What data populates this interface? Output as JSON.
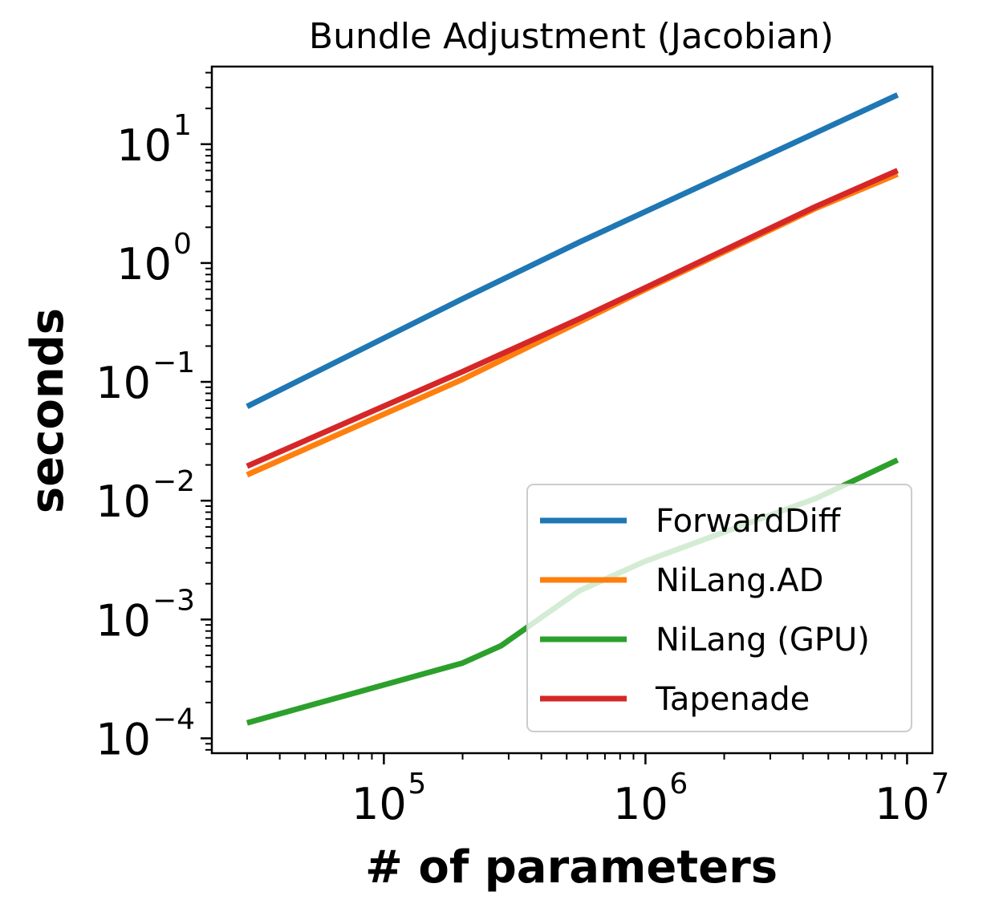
{
  "chart_data": {
    "type": "line",
    "title": "Bundle Adjustment (Jacobian)",
    "xlabel": "# of parameters",
    "ylabel": "seconds",
    "xscale": "log",
    "yscale": "log",
    "xlim": [
      22000,
      12500000
    ],
    "ylim": [
      7.5e-05,
      45
    ],
    "x_ticks": [
      {
        "value": 100000,
        "base": "10",
        "exp": "5"
      },
      {
        "value": 1000000,
        "base": "10",
        "exp": "6"
      },
      {
        "value": 10000000,
        "base": "10",
        "exp": "7"
      }
    ],
    "y_ticks": [
      {
        "value": 0.0001,
        "base": "10",
        "exp": "−4"
      },
      {
        "value": 0.001,
        "base": "10",
        "exp": "−3"
      },
      {
        "value": 0.01,
        "base": "10",
        "exp": "−2"
      },
      {
        "value": 0.1,
        "base": "10",
        "exp": "−1"
      },
      {
        "value": 1,
        "base": "10",
        "exp": "0"
      },
      {
        "value": 10,
        "base": "10",
        "exp": "1"
      }
    ],
    "legend_position": "lower-right",
    "series": [
      {
        "name": "ForwardDiff",
        "color": "#1f77b4",
        "x": [
          30000,
          200000,
          560000,
          9200000
        ],
        "y": [
          0.062,
          0.5,
          1.5,
          26
        ]
      },
      {
        "name": "NiLang.AD",
        "color": "#ff7f0e",
        "x": [
          30000,
          200000,
          560000,
          1000000,
          4500000,
          9200000
        ],
        "y": [
          0.0165,
          0.105,
          0.32,
          0.6,
          2.9,
          5.6
        ]
      },
      {
        "name": "NiLang (GPU)",
        "color": "#2ca02c",
        "x": [
          30000,
          200000,
          280000,
          560000,
          1000000,
          4500000,
          9200000
        ],
        "y": [
          0.000135,
          0.00043,
          0.0006,
          0.00175,
          0.0031,
          0.0105,
          0.022
        ]
      },
      {
        "name": "Tapenade",
        "color": "#d62728",
        "x": [
          30000,
          200000,
          560000,
          1000000,
          4500000,
          9200000
        ],
        "y": [
          0.0195,
          0.122,
          0.34,
          0.62,
          3.0,
          6.0
        ]
      }
    ]
  }
}
